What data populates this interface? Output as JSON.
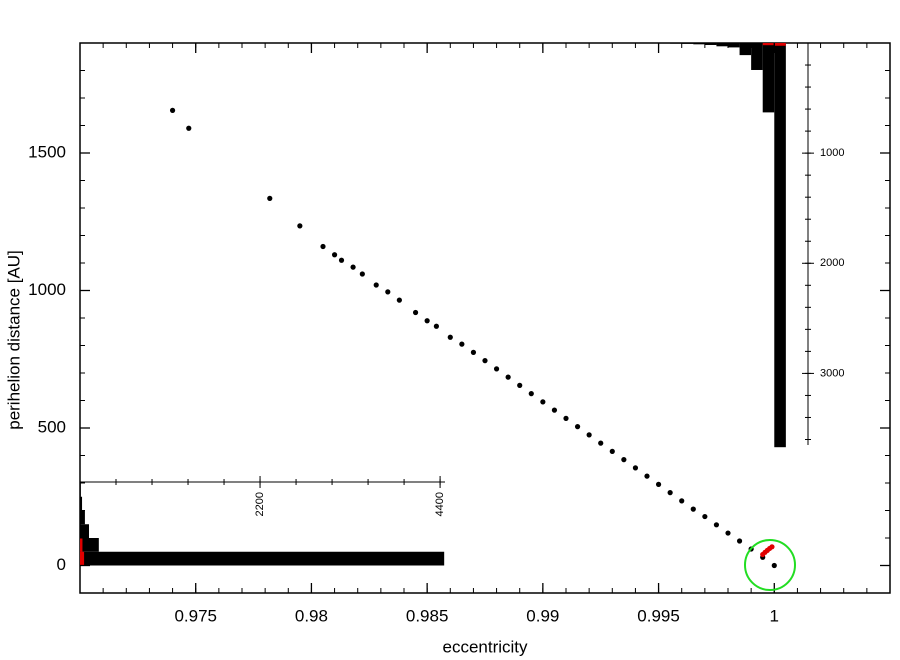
{
  "chart_data": [
    {
      "type": "scatter",
      "xlabel": "eccentricity",
      "ylabel": "perihelion distance [AU]",
      "xlim": [
        0.97,
        1.005
      ],
      "xticks": [
        0.975,
        0.98,
        0.985,
        0.99,
        0.995,
        1
      ],
      "x_minor_step": 0.001,
      "ylim": [
        -100,
        1900
      ],
      "yticks": [
        0,
        500,
        1000,
        1500
      ],
      "y_minor_step": 100,
      "series": [
        {
          "color": "#000000",
          "x": [
            0.974,
            0.9747,
            0.9782,
            0.9795,
            0.9805,
            0.981,
            0.9813,
            0.9818,
            0.9822,
            0.9828,
            0.9833,
            0.9838,
            0.9845,
            0.985,
            0.9854,
            0.986,
            0.9865,
            0.987,
            0.9875,
            0.988,
            0.9885,
            0.989,
            0.9895,
            0.99,
            0.9905,
            0.991,
            0.9915,
            0.992,
            0.9925,
            0.993,
            0.9935,
            0.994,
            0.9945,
            0.995,
            0.9955,
            0.996,
            0.9965,
            0.997,
            0.9975,
            0.998,
            0.9985,
            0.999,
            0.9995,
            1.0
          ],
          "values": [
            1655,
            1590,
            1335,
            1235,
            1160,
            1130,
            1110,
            1085,
            1060,
            1020,
            995,
            965,
            920,
            890,
            870,
            830,
            805,
            775,
            745,
            715,
            685,
            655,
            625,
            595,
            565,
            535,
            505,
            475,
            445,
            415,
            385,
            355,
            325,
            295,
            265,
            235,
            205,
            178,
            148,
            118,
            89,
            60,
            30,
            0
          ]
        },
        {
          "color": "#e00000",
          "x": [
            0.9995,
            0.9996,
            0.9997,
            0.9998,
            0.9999
          ],
          "values": [
            40,
            48,
            55,
            62,
            68
          ]
        }
      ]
    },
    {
      "type": "histogram",
      "orientation": "down",
      "bins": [
        0.9935,
        0.994,
        0.9945,
        0.995,
        0.9955,
        0.996,
        0.9965,
        0.997,
        0.9975,
        0.998,
        0.9985,
        0.999,
        0.9995,
        1.0,
        1.0005
      ],
      "series": [
        {
          "color": "#000000",
          "values": [
            2,
            3,
            4,
            5,
            6,
            8,
            12,
            18,
            30,
            40,
            110,
            245,
            630,
            3670
          ]
        },
        {
          "color": "#e00000",
          "values": [
            0,
            0,
            0,
            0,
            0,
            0,
            0,
            0,
            0,
            0,
            0,
            0,
            20,
            25
          ]
        }
      ],
      "count_lim": [
        0,
        3650
      ],
      "count_ticks": [
        1000,
        2000,
        3000
      ],
      "count_minor_step": 200
    },
    {
      "type": "histogram",
      "orientation": "right",
      "bins": [
        0,
        50,
        100,
        150,
        200,
        250,
        300
      ],
      "series": [
        {
          "color": "#000000",
          "values": [
            4450,
            230,
            110,
            60,
            25,
            10
          ]
        },
        {
          "color": "#e00000",
          "values": [
            50,
            30,
            0,
            0,
            0,
            0
          ]
        }
      ],
      "count_lim": [
        0,
        4460
      ],
      "count_ticks": [
        2200,
        4400
      ],
      "count_minor_step": 440
    }
  ]
}
